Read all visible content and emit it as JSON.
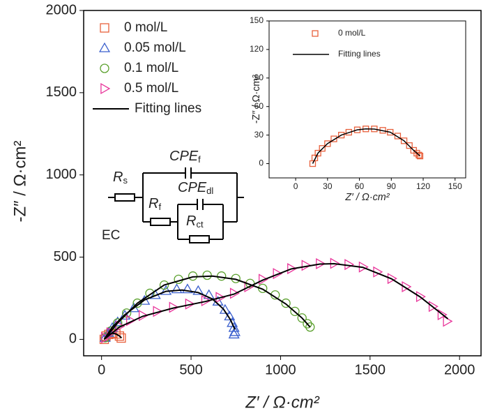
{
  "chart_data": [
    {
      "type": "scatter",
      "x_label": "Z′ / Ω·cm²",
      "y_label": "-Z″ / Ω·cm²",
      "xlim": [
        -100,
        2120
      ],
      "ylim": [
        -100,
        2000
      ],
      "xticks": [
        0,
        500,
        1000,
        1500,
        2000
      ],
      "yticks": [
        0,
        500,
        1000,
        1500,
        2000
      ],
      "legend": "upper left",
      "series": [
        {
          "name": "0 mol/L",
          "color": "#e8603c",
          "marker": "square",
          "x": [
            15,
            25,
            40,
            60,
            80,
            100,
            110
          ],
          "values": [
            0,
            20,
            30,
            37,
            33,
            20,
            8
          ]
        },
        {
          "name": "0.05 mol/L",
          "color": "#3a5fcd",
          "marker": "triangle-up",
          "x": [
            20,
            40,
            60,
            90,
            130,
            180,
            240,
            300,
            360,
            420,
            480,
            540,
            600,
            650,
            690,
            715,
            730,
            740,
            745,
            740
          ],
          "values": [
            10,
            40,
            70,
            105,
            145,
            190,
            235,
            270,
            295,
            305,
            305,
            295,
            270,
            230,
            180,
            140,
            100,
            70,
            45,
            30
          ]
        },
        {
          "name": "0.1 mol/L",
          "color": "#5aa02c",
          "marker": "circle",
          "x": [
            20,
            50,
            90,
            140,
            200,
            270,
            350,
            430,
            510,
            590,
            670,
            750,
            830,
            900,
            970,
            1030,
            1080,
            1120,
            1150,
            1165
          ],
          "values": [
            10,
            50,
            100,
            160,
            220,
            280,
            330,
            365,
            385,
            390,
            385,
            370,
            340,
            310,
            270,
            220,
            170,
            130,
            95,
            75
          ]
        },
        {
          "name": "0.5 mol/L",
          "color": "#e8359a",
          "marker": "triangle-right",
          "x": [
            20,
            50,
            100,
            160,
            230,
            310,
            400,
            490,
            580,
            660,
            740,
            820,
            900,
            980,
            1060,
            1140,
            1220,
            1300,
            1380,
            1460,
            1540,
            1620,
            1700,
            1780,
            1850,
            1900,
            1930
          ],
          "values": [
            10,
            40,
            80,
            115,
            145,
            170,
            195,
            215,
            235,
            255,
            280,
            320,
            365,
            400,
            430,
            450,
            460,
            462,
            455,
            440,
            410,
            370,
            320,
            260,
            200,
            150,
            110
          ]
        }
      ],
      "fit": {
        "name": "Fitting lines",
        "color": "#000000",
        "lines": [
          {
            "x": [
              15,
              40,
              60,
              80,
              100,
              112
            ],
            "values": [
              0,
              30,
              37,
              33,
              20,
              8
            ]
          },
          {
            "x": [
              15,
              60,
              130,
              240,
              360,
              450,
              540,
              620,
              680,
              720,
              745
            ],
            "values": [
              0,
              75,
              150,
              240,
              292,
              300,
              285,
              245,
              185,
              120,
              60
            ]
          },
          {
            "x": [
              15,
              90,
              200,
              350,
              510,
              620,
              750,
              900,
              1030,
              1120,
              1165
            ],
            "values": [
              0,
              100,
              220,
              330,
              380,
              385,
              365,
              305,
              215,
              130,
              75
            ]
          },
          {
            "x": [
              15,
              100,
              230,
              400,
              580,
              740,
              900,
              1060,
              1220,
              1300,
              1460,
              1620,
              1780,
              1935
            ],
            "values": [
              0,
              75,
              140,
              190,
              230,
              275,
              360,
              428,
              458,
              460,
              438,
              368,
              258,
              125
            ]
          }
        ]
      }
    },
    {
      "type": "scatter",
      "x_label": "Z′ / Ω·cm²",
      "y_label": "-Z″ / Ω·cm²",
      "xlim": [
        -25,
        160
      ],
      "ylim": [
        -15,
        150
      ],
      "xticks": [
        0,
        30,
        60,
        90,
        120,
        150
      ],
      "yticks": [
        0,
        30,
        60,
        90,
        120,
        150
      ],
      "legend": "upper left",
      "series": [
        {
          "name": "0 mol/L",
          "color": "#e8603c",
          "marker": "square",
          "x": [
            16,
            18,
            21,
            25,
            30,
            36,
            43,
            50,
            58,
            66,
            74,
            82,
            89,
            96,
            102,
            107,
            111,
            114,
            116,
            117
          ],
          "values": [
            0,
            6,
            11,
            16,
            21,
            26,
            30,
            33,
            35.5,
            36.5,
            36.5,
            35,
            33,
            29,
            24,
            19,
            14,
            11,
            9,
            8
          ]
        }
      ],
      "fit": {
        "name": "Fitting lines",
        "color": "#000000",
        "lines": [
          {
            "x": [
              16,
              21,
              30,
              43,
              58,
              66,
              74,
              89,
              102,
              111,
              117
            ],
            "values": [
              0,
              11,
              21,
              30,
              35.5,
              36.5,
              36.3,
              33,
              24,
              14,
              8
            ]
          }
        ]
      }
    }
  ],
  "circuit": {
    "label": "EC",
    "elements": [
      {
        "symbol": "R",
        "subscript": "s"
      },
      {
        "symbol": "CPE",
        "subscript": "f"
      },
      {
        "symbol": "R",
        "subscript": "f"
      },
      {
        "symbol": "CPE",
        "subscript": "dl"
      },
      {
        "symbol": "R",
        "subscript": "ct"
      }
    ]
  }
}
